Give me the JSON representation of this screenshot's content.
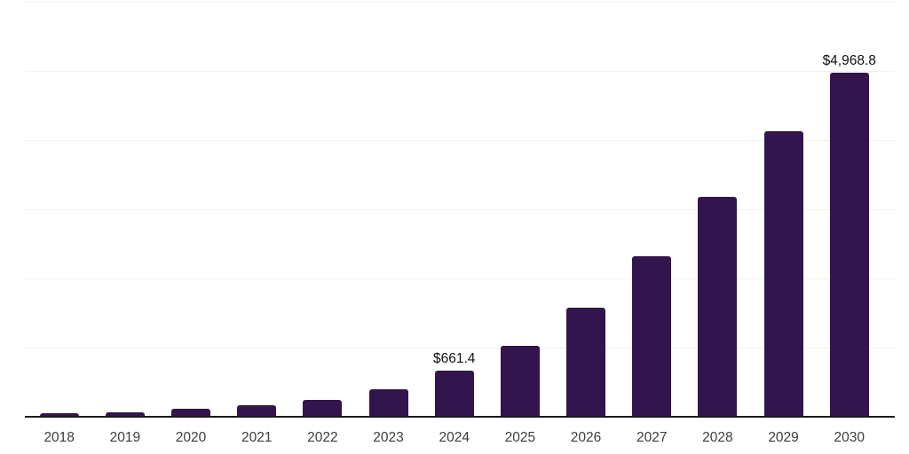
{
  "colors": {
    "background": "#ffffff",
    "bar": "#33154d",
    "gridline": "#f1f1f1",
    "axis_line": "#1a1a1a",
    "tick_text": "#3c3c3c",
    "value_label_text": "#111111"
  },
  "chart_data": {
    "type": "bar",
    "title": "",
    "xlabel": "",
    "ylabel": "",
    "ylim": [
      0,
      6000
    ],
    "grid_step": 1000,
    "grid": true,
    "legend_position": "none",
    "categories": [
      "2018",
      "2019",
      "2020",
      "2021",
      "2022",
      "2023",
      "2024",
      "2025",
      "2026",
      "2027",
      "2028",
      "2029",
      "2030"
    ],
    "values": [
      50,
      62,
      110,
      163,
      245,
      400,
      661.4,
      1030,
      1580,
      2315,
      3180,
      4125,
      4968.8
    ],
    "points": [
      {
        "category": "2018",
        "value": 50
      },
      {
        "category": "2019",
        "value": 62
      },
      {
        "category": "2020",
        "value": 110
      },
      {
        "category": "2021",
        "value": 163
      },
      {
        "category": "2022",
        "value": 245
      },
      {
        "category": "2023",
        "value": 400
      },
      {
        "category": "2024",
        "value": 661.4,
        "label": "$661.4"
      },
      {
        "category": "2025",
        "value": 1030
      },
      {
        "category": "2026",
        "value": 1580
      },
      {
        "category": "2027",
        "value": 2315
      },
      {
        "category": "2028",
        "value": 3180
      },
      {
        "category": "2029",
        "value": 4125
      },
      {
        "category": "2030",
        "value": 4968.8,
        "label": "$4,968.8"
      }
    ]
  }
}
